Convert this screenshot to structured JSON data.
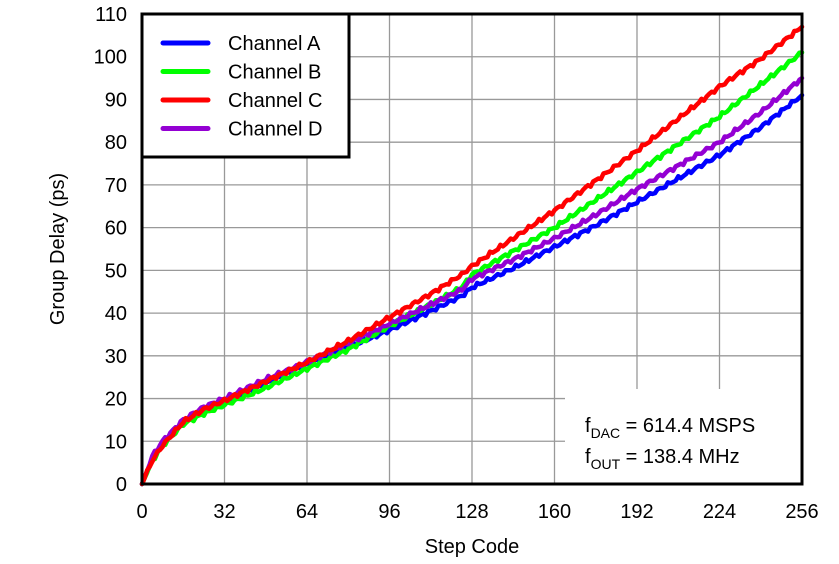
{
  "chart_data": {
    "type": "line",
    "title": "",
    "xlabel": "Step Code",
    "ylabel": "Group Delay (ps)",
    "xlim": [
      0,
      256
    ],
    "ylim": [
      0,
      110
    ],
    "xticks": [
      0,
      32,
      64,
      96,
      128,
      160,
      192,
      224,
      256
    ],
    "yticks": [
      0,
      10,
      20,
      30,
      40,
      50,
      60,
      70,
      80,
      90,
      100,
      110
    ],
    "grid": true,
    "legend_position": "upper left",
    "x": [
      0,
      4,
      8,
      16,
      24,
      32,
      48,
      64,
      80,
      96,
      112,
      124,
      128,
      144,
      160,
      176,
      192,
      208,
      224,
      240,
      256
    ],
    "series": [
      {
        "name": "Channel A",
        "color": "#0000ff",
        "values": [
          0,
          6,
          9.5,
          14.5,
          17,
          19,
          23.5,
          28,
          32,
          36,
          40.5,
          44,
          46,
          50.5,
          55.5,
          60.5,
          66,
          71.5,
          77,
          83.5,
          91
        ]
      },
      {
        "name": "Channel B",
        "color": "#00ff00",
        "values": [
          0,
          5.5,
          9,
          14,
          16.5,
          18.5,
          22.5,
          27,
          31.5,
          37,
          42,
          46,
          49,
          54.5,
          60,
          66.5,
          73,
          79.5,
          86,
          93.5,
          101
        ]
      },
      {
        "name": "Channel C",
        "color": "#ff0000",
        "values": [
          0,
          5.5,
          9,
          14.5,
          17.5,
          19.5,
          24,
          28.5,
          33.5,
          39,
          44.5,
          49,
          51,
          57.5,
          64,
          71,
          78,
          85.5,
          93,
          99.5,
          107
        ]
      },
      {
        "name": "Channel D",
        "color": "#9400d3",
        "values": [
          0,
          6.5,
          10,
          15,
          18,
          20,
          24.5,
          28.5,
          33,
          37.5,
          42,
          45.5,
          48,
          52.5,
          57.5,
          63,
          69,
          74.5,
          80,
          87,
          95
        ]
      }
    ],
    "annotations": [
      {
        "prefix": "f",
        "subscript": "DAC",
        "text": " = 614.4 MSPS"
      },
      {
        "prefix": "f",
        "subscript": "OUT",
        "text": " = 138.4 MHz"
      }
    ]
  },
  "labels": {
    "xlabel": "Step Code",
    "ylabel": "Group Delay (ps)",
    "legend": [
      "Channel A",
      "Channel B",
      "Channel C",
      "Channel D"
    ],
    "anno1_prefix": "f",
    "anno1_sub": "DAC",
    "anno1_text": " = 614.4 MSPS",
    "anno2_prefix": "f",
    "anno2_sub": "OUT",
    "anno2_text": " = 138.4 MHz"
  },
  "colors": {
    "grid": "#999999",
    "frame": "#000000",
    "channel_a": "#0000ff",
    "channel_b": "#00ff00",
    "channel_c": "#ff0000",
    "channel_d": "#9400d3"
  }
}
